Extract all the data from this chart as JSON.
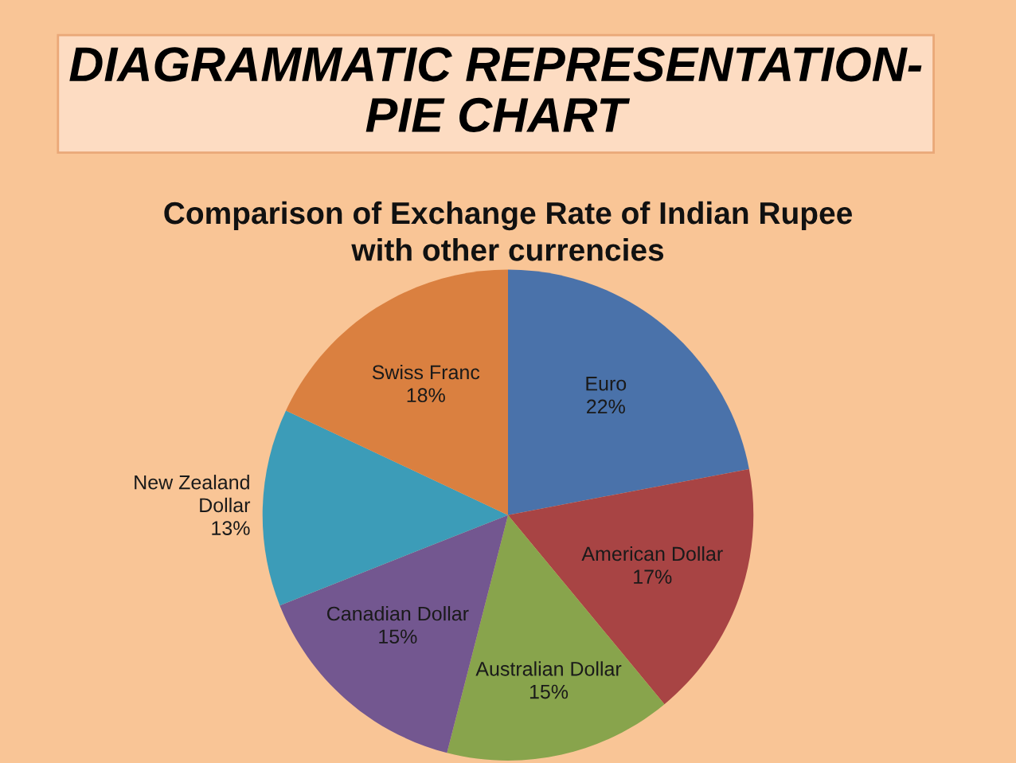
{
  "chart_data": {
    "type": "pie",
    "title": "DIAGRAMMATIC REPRESENTATION-\nPIE CHART",
    "subtitle": "Comparison of Exchange Rate of Indian Rupee\nwith other currencies",
    "categories": [
      "Euro",
      "American Dollar",
      "Australian Dollar",
      "Canadian Dollar",
      "New Zealand\nDollar",
      "Swiss Franc"
    ],
    "values": [
      22,
      17,
      15,
      15,
      13,
      18
    ],
    "colors": [
      "#4a72aa",
      "#a84444",
      "#88a44c",
      "#735790",
      "#3c9cb8",
      "#da8040"
    ],
    "value_labels": [
      "22%",
      "17%",
      "15%",
      "15%",
      "13%",
      "18%"
    ]
  }
}
